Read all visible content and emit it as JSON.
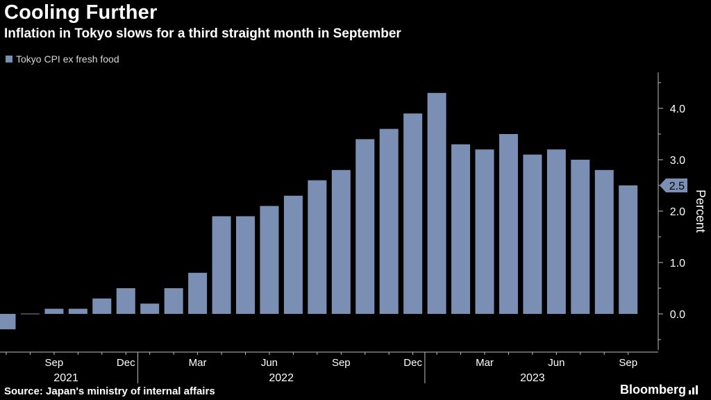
{
  "header": {
    "title": "Cooling Further",
    "subtitle": "Inflation in Tokyo slows for a third straight month in September"
  },
  "legend": {
    "label": "Tokyo CPI ex fresh food"
  },
  "footer": {
    "source": "Source: Japan's ministry of internal affairs",
    "brand": "Bloomberg"
  },
  "colors": {
    "bar": "#7b8fb5",
    "background": "#000000",
    "text": "#ffffff",
    "axis": "#bfbfbf"
  },
  "chart_data": {
    "type": "bar",
    "ylabel": "Percent",
    "ylim": [
      -0.7,
      4.7
    ],
    "yticks": [
      0.0,
      1.0,
      2.0,
      3.0,
      4.0
    ],
    "yticks_labels": [
      "0.0",
      "1.0",
      "2.0",
      "3.0",
      "4.0"
    ],
    "y_axis_side": "right",
    "grid": false,
    "legend_position": "top-left",
    "last_value_label": "2.5",
    "categories": [
      "2021-07",
      "2021-08",
      "2021-09",
      "2021-10",
      "2021-11",
      "2021-12",
      "2022-01",
      "2022-02",
      "2022-03",
      "2022-04",
      "2022-05",
      "2022-06",
      "2022-07",
      "2022-08",
      "2022-09",
      "2022-10",
      "2022-11",
      "2022-12",
      "2023-01",
      "2023-02",
      "2023-03",
      "2023-04",
      "2023-05",
      "2023-06",
      "2023-07",
      "2023-08",
      "2023-09"
    ],
    "values": [
      -0.3,
      0.0,
      0.1,
      0.1,
      0.3,
      0.5,
      0.2,
      0.5,
      0.8,
      1.9,
      1.9,
      2.1,
      2.3,
      2.6,
      2.8,
      3.4,
      3.6,
      3.9,
      4.3,
      3.3,
      3.2,
      3.5,
      3.1,
      3.2,
      3.0,
      2.8,
      2.5
    ],
    "x_tick_labels": [
      {
        "index": 2,
        "label": "Sep"
      },
      {
        "index": 5,
        "label": "Dec"
      },
      {
        "index": 8,
        "label": "Mar"
      },
      {
        "index": 11,
        "label": "Jun"
      },
      {
        "index": 14,
        "label": "Sep"
      },
      {
        "index": 17,
        "label": "Dec"
      },
      {
        "index": 20,
        "label": "Mar"
      },
      {
        "index": 23,
        "label": "Jun"
      },
      {
        "index": 26,
        "label": "Sep"
      }
    ],
    "year_labels": [
      {
        "label": "2021",
        "from_index": 0,
        "to_index": 5
      },
      {
        "label": "2022",
        "from_index": 6,
        "to_index": 17
      },
      {
        "label": "2023",
        "from_index": 18,
        "to_index": 26
      }
    ]
  }
}
